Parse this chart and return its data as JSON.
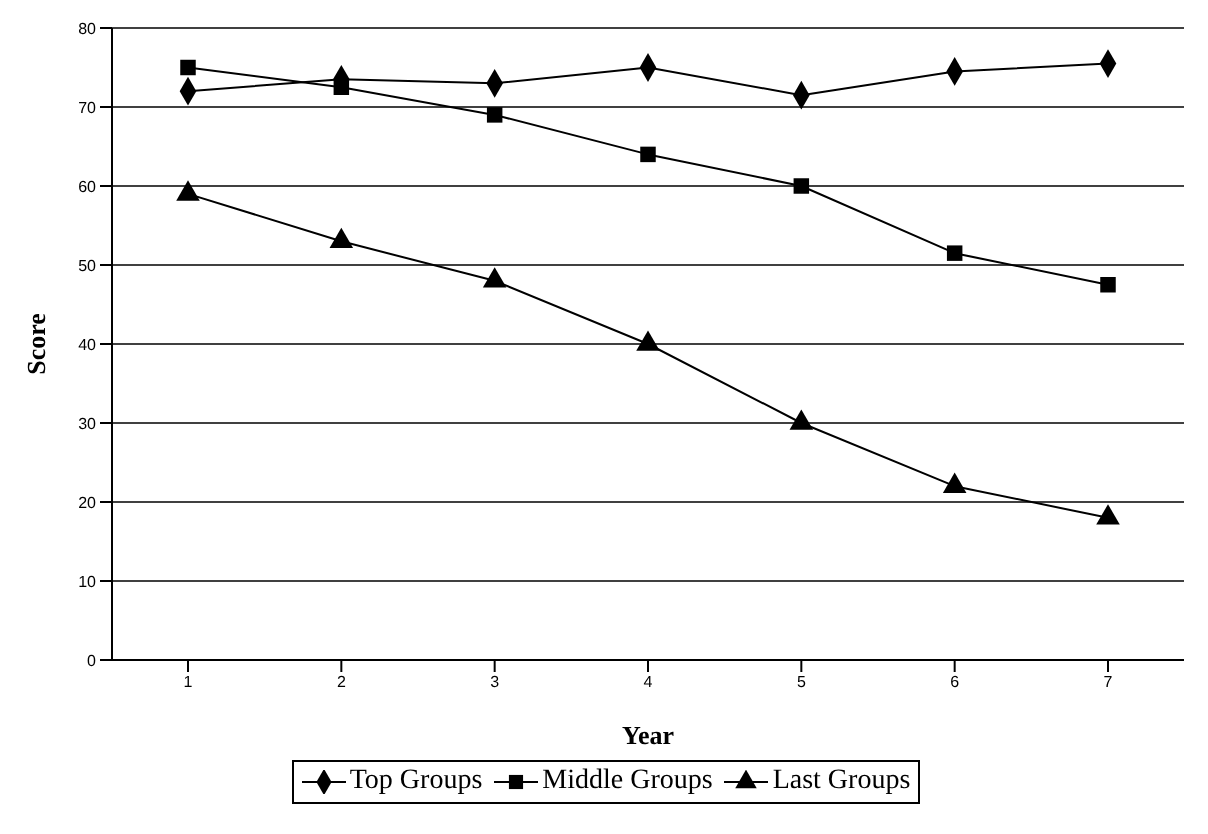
{
  "chart_data": {
    "type": "line",
    "xlabel": "Year",
    "ylabel": "Score",
    "categories": [
      "1",
      "2",
      "3",
      "4",
      "5",
      "6",
      "7"
    ],
    "series": [
      {
        "name": "Top Groups",
        "color": "#000000",
        "marker": "diamond",
        "values": [
          72,
          73.5,
          73,
          75,
          71.5,
          74.5,
          75.5
        ]
      },
      {
        "name": "Middle Groups",
        "color": "#000000",
        "marker": "square",
        "values": [
          75,
          72.5,
          69,
          64,
          60,
          51.5,
          47.5
        ]
      },
      {
        "name": "Last Groups",
        "color": "#000000",
        "marker": "triangle",
        "values": [
          59,
          53,
          48,
          40,
          30,
          22,
          18
        ]
      }
    ],
    "ylim": [
      0,
      80
    ],
    "yticks": [
      0,
      10,
      20,
      30,
      40,
      50,
      60,
      70,
      80
    ],
    "grid": "y",
    "legend": "bottom",
    "line_style": "solid"
  }
}
